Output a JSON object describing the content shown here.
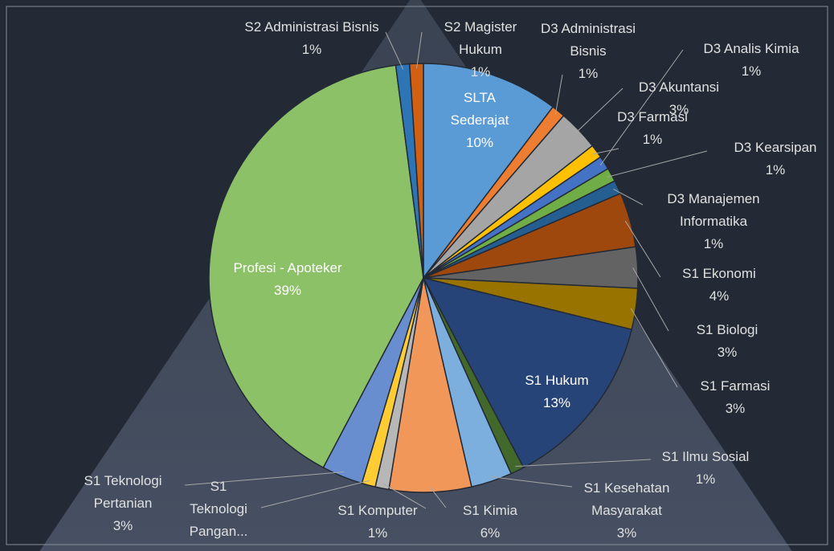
{
  "chart_data": {
    "type": "pie",
    "categories": [
      "SLTA Sederajat",
      "D3 Administrasi Bisnis",
      "D3 Akuntansi",
      "D3 Farmasi",
      "D3 Analis Kimia",
      "D3 Kearsipan",
      "D3 Manajemen Informatika",
      "S1 Ekonomi",
      "S1 Biologi",
      "S1 Farmasi",
      "S1 Hukum",
      "S1 Ilmu Sosial",
      "S1 Kesehatan Masyarakat",
      "S1 Kimia",
      "S1 Komputer",
      "S1 Teknologi Pangan...",
      "S1 Teknologi Pertanian",
      "Profesi - Apoteker",
      "S2 Administrasi Bisnis",
      "S2 Magister Hukum"
    ],
    "values": [
      10,
      1,
      3,
      1,
      1,
      1,
      1,
      4,
      3,
      3,
      13,
      1,
      3,
      6,
      1,
      1,
      3,
      39,
      1,
      1
    ],
    "value_labels": [
      "10%",
      "1%",
      "3%",
      "1%",
      "1%",
      "1%",
      "1%",
      "4%",
      "3%",
      "3%",
      "13%",
      "1%",
      "3%",
      "6%",
      "1%",
      null,
      "3%",
      "39%",
      "1%",
      "1%"
    ],
    "colors": [
      "#5b9bd5",
      "#ed7d31",
      "#a5a5a5",
      "#ffc000",
      "#4472c4",
      "#70ad47",
      "#255e91",
      "#9e480e",
      "#636363",
      "#997300",
      "#264478",
      "#43682b",
      "#7cafdd",
      "#f1975a",
      "#b7b7b7",
      "#ffcd33",
      "#698ed0",
      "#8cc168",
      "#2e75b6",
      "#d26012"
    ]
  }
}
